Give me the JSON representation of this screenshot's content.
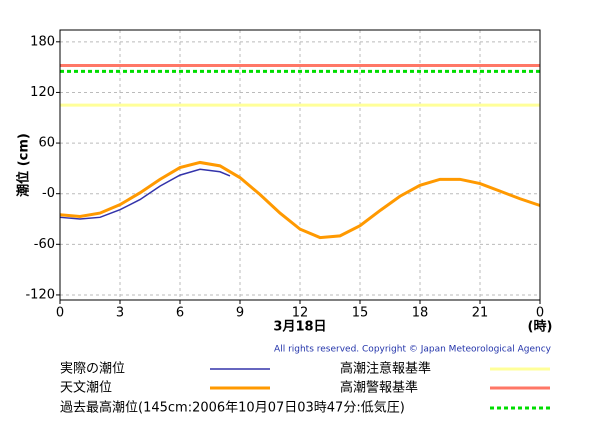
{
  "chart_data": {
    "type": "line",
    "y_label": "潮位 (cm)",
    "x_label": "3月18日",
    "x_unit": "(時)",
    "copyright": "All rights reserved. Copyright © Japan Meteorological Agency",
    "xlim": [
      0,
      24
    ],
    "xticks": [
      0,
      3,
      6,
      9,
      12,
      15,
      18,
      21,
      {
        "value": 24,
        "label": "0"
      }
    ],
    "ylim": [
      -126,
      194
    ],
    "yticks": [
      180,
      120,
      60,
      {
        "value": 0,
        "label": "-0"
      },
      -60,
      -120
    ],
    "grid": true,
    "series": [
      {
        "name": "実際の潮位",
        "color": "#3333aa",
        "x": [
          0,
          1,
          2,
          3,
          4,
          5,
          6,
          7,
          8,
          8.5
        ],
        "values": [
          -28,
          -30,
          -28,
          -19,
          -7,
          9,
          22,
          29,
          26,
          21
        ]
      },
      {
        "name": "天文潮位",
        "color": "#ff9900",
        "x": [
          0,
          1,
          2,
          3,
          4,
          5,
          6,
          7,
          8,
          9,
          10,
          11,
          12,
          13,
          14,
          15,
          16,
          17,
          18,
          19,
          20,
          21,
          22,
          23,
          24
        ],
        "values": [
          -25,
          -27,
          -23,
          -13,
          1,
          17,
          31,
          37,
          33,
          19,
          -1,
          -23,
          -42,
          -52,
          -50,
          -38,
          -20,
          -3,
          10,
          17,
          17,
          12,
          3,
          -6,
          -14
        ]
      }
    ],
    "reference_lines": [
      {
        "name": "高潮注意報基準",
        "value": 105,
        "color": "#ffff99",
        "style": "solid"
      },
      {
        "name": "高潮警報基準",
        "value": 152,
        "color": "#ff7766",
        "style": "solid"
      },
      {
        "name": "過去最高潮位(145cm:2006年10月07日03時47分:低気圧)",
        "value": 145,
        "color": "#00dd00",
        "style": "dotted"
      }
    ]
  }
}
